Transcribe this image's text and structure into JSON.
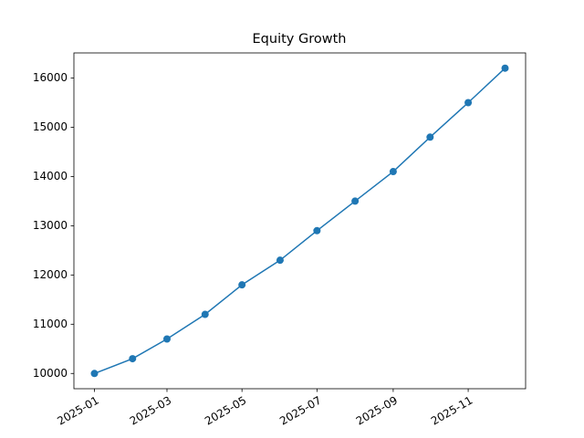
{
  "chart_data": {
    "type": "line",
    "title": "Equity Growth",
    "x": [
      "2025-01",
      "2025-02",
      "2025-03",
      "2025-04",
      "2025-05",
      "2025-06",
      "2025-07",
      "2025-08",
      "2025-09",
      "2025-10",
      "2025-11",
      "2025-12"
    ],
    "values": [
      10000,
      10300,
      10700,
      11200,
      11800,
      12300,
      12900,
      13500,
      14100,
      14800,
      15500,
      16200
    ],
    "color": "#1f77b4",
    "xticks": [
      "2025-01",
      "2025-03",
      "2025-05",
      "2025-07",
      "2025-09",
      "2025-11"
    ],
    "ylim": [
      9690,
      16510
    ],
    "yticks": [
      10000,
      11000,
      12000,
      13000,
      14000,
      15000,
      16000
    ],
    "grid": false
  }
}
